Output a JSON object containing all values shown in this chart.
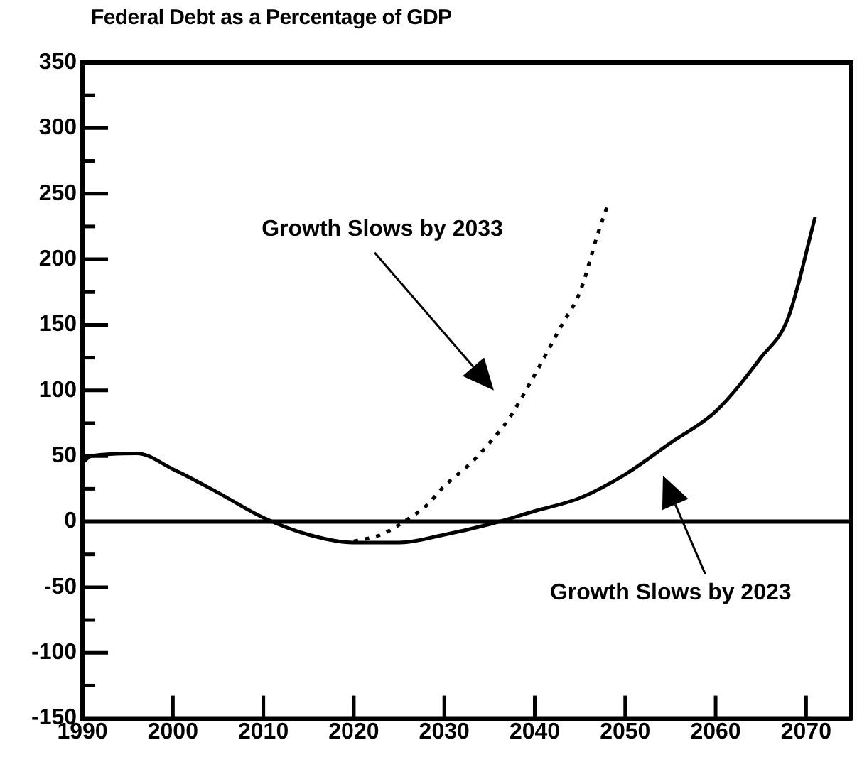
{
  "chart_data": {
    "type": "line",
    "title": "Federal Debt as a Percentage of GDP",
    "xlim": [
      1990,
      2075
    ],
    "xticks": [
      1990,
      2000,
      2010,
      2020,
      2030,
      2040,
      2050,
      2060,
      2070
    ],
    "ylim": [
      -150,
      350
    ],
    "yticks": [
      -150,
      {
        "value": -125,
        "label": null
      },
      -100,
      {
        "value": -75,
        "label": null
      },
      -50,
      {
        "value": -25,
        "label": null
      },
      0,
      {
        "value": 25,
        "label": null
      },
      50,
      {
        "value": 75,
        "label": null
      },
      100,
      {
        "value": 125,
        "label": null
      },
      150,
      {
        "value": 175,
        "label": null
      },
      200,
      {
        "value": 225,
        "label": null
      },
      250,
      {
        "value": 275,
        "label": null
      },
      300,
      {
        "value": 325,
        "label": null
      },
      350
    ],
    "grid": false,
    "legend": false,
    "marker": "none",
    "ref_lines": [
      {
        "axis": "y",
        "value": 0,
        "color": "#000000"
      }
    ],
    "series": [
      {
        "color": "#000000",
        "line_style": "solid",
        "x": [
          1990,
          1991,
          1996,
          2000,
          2005,
          2010,
          2015,
          2020,
          2025,
          2030,
          2035,
          2040,
          2045,
          2050,
          2055,
          2060,
          2065,
          2068,
          2071
        ],
        "values": [
          45,
          50,
          52,
          40,
          22,
          3,
          -10,
          -16,
          -16,
          -10,
          -2,
          8,
          18,
          36,
          60,
          84,
          125,
          155,
          232
        ]
      },
      {
        "color": "#000000",
        "line_style": "dotted",
        "x": [
          2020,
          2023,
          2026,
          2028,
          2030,
          2033,
          2035,
          2037,
          2040,
          2043,
          2045,
          2047,
          2048
        ],
        "values": [
          -15,
          -10,
          2,
          12,
          27,
          45,
          60,
          77,
          112,
          150,
          175,
          220,
          240
        ]
      }
    ],
    "annotations": [
      "Growth Slows by 2033",
      "Growth Slows by 2023"
    ]
  }
}
